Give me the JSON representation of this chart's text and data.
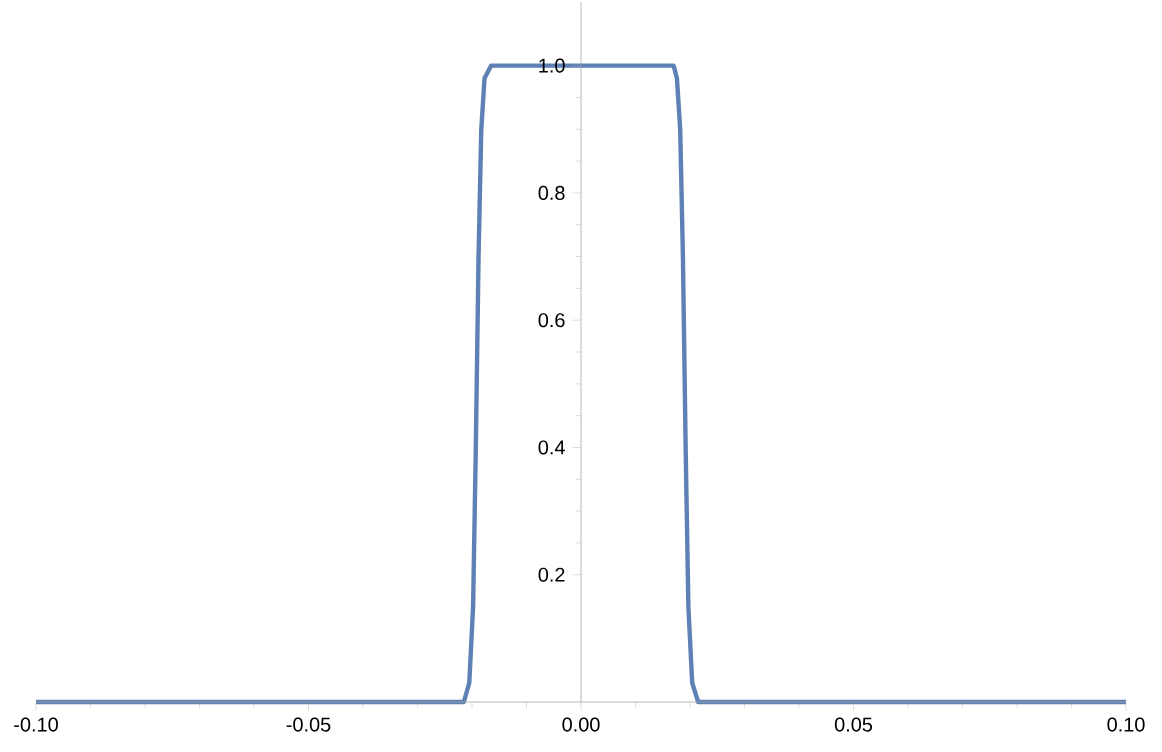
{
  "chart_data": {
    "type": "line",
    "x": [
      -0.1,
      -0.0215,
      -0.0205,
      -0.0198,
      -0.0193,
      -0.0188,
      -0.0183,
      -0.0177,
      -0.0165,
      0.0,
      0.017,
      0.0176,
      0.0182,
      0.0187,
      0.0192,
      0.0197,
      0.0204,
      0.0215,
      0.1
    ],
    "series": [
      {
        "color": "#5e81b5",
        "values": [
          0,
          0,
          0.03,
          0.15,
          0.4,
          0.7,
          0.9,
          0.98,
          1.0,
          1.0,
          1.0,
          0.98,
          0.9,
          0.7,
          0.4,
          0.15,
          0.03,
          0,
          0
        ]
      }
    ],
    "xlim": [
      -0.1,
      0.1
    ],
    "ylim": [
      0,
      1.1
    ],
    "xticks": [
      {
        "value": -0.1,
        "label": "-0.10"
      },
      {
        "value": -0.05,
        "label": "-0.05"
      },
      {
        "value": 0,
        "label": "0.00"
      },
      {
        "value": 0.05,
        "label": "0.05"
      },
      {
        "value": 0.1,
        "label": "0.10"
      }
    ],
    "yticks": [
      0.2,
      0.4,
      0.6,
      {
        "value": 0.8,
        "label": "0.8"
      },
      {
        "value": 1.0,
        "label": "1.0"
      }
    ],
    "grid": false,
    "marker": "none",
    "line_style": "solid"
  }
}
